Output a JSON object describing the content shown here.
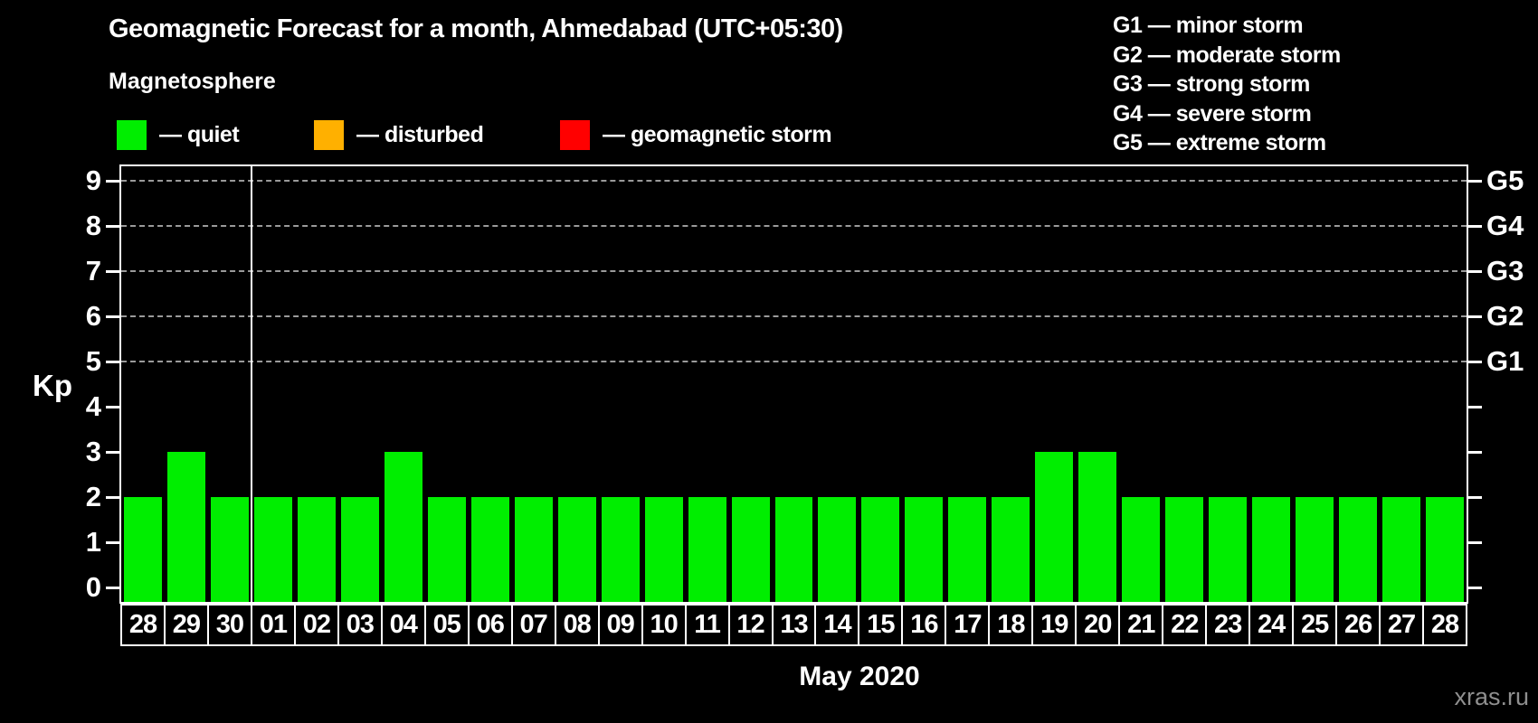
{
  "header": {
    "title": "Geomagnetic Forecast for a month, Ahmedabad (UTC+05:30)",
    "subtitle": "Magnetosphere"
  },
  "legend": {
    "items": [
      {
        "name": "quiet",
        "label": "— quiet",
        "color": "#00ee00"
      },
      {
        "name": "disturbed",
        "label": "— disturbed",
        "color": "#ffb000"
      },
      {
        "name": "geomagnetic-storm",
        "label": "— geomagnetic storm",
        "color": "#ff0000"
      }
    ]
  },
  "storm_scale": {
    "items": [
      "G1 — minor storm",
      "G2 — moderate storm",
      "G3 — strong storm",
      "G4 — severe storm",
      "G5 — extreme storm"
    ]
  },
  "axes": {
    "y_label": "Kp",
    "y_ticks": [
      0,
      1,
      2,
      3,
      4,
      5,
      6,
      7,
      8,
      9
    ],
    "g_ticks": [
      {
        "kp": 5,
        "label": "G1"
      },
      {
        "kp": 6,
        "label": "G2"
      },
      {
        "kp": 7,
        "label": "G3"
      },
      {
        "kp": 8,
        "label": "G4"
      },
      {
        "kp": 9,
        "label": "G5"
      }
    ],
    "x_title": "May 2020"
  },
  "footer": {
    "watermark": "xras.ru"
  },
  "chart_data": {
    "type": "bar",
    "title": "Geomagnetic Forecast for a month, Ahmedabad (UTC+05:30)",
    "xlabel": "May 2020",
    "ylabel": "Kp",
    "ylim": [
      -0.36,
      9.36
    ],
    "gridlines_at": [
      5,
      6,
      7,
      8,
      9
    ],
    "grid_style": "dashed",
    "bar_color": "#00ee00",
    "separator_after_index": 2,
    "categories": [
      "28",
      "29",
      "30",
      "01",
      "02",
      "03",
      "04",
      "05",
      "06",
      "07",
      "08",
      "09",
      "10",
      "11",
      "12",
      "13",
      "14",
      "15",
      "16",
      "17",
      "18",
      "19",
      "20",
      "21",
      "22",
      "23",
      "24",
      "25",
      "26",
      "27",
      "28"
    ],
    "values": [
      2,
      3,
      2,
      2,
      2,
      2,
      3,
      2,
      2,
      2,
      2,
      2,
      2,
      2,
      2,
      2,
      2,
      2,
      2,
      2,
      2,
      3,
      3,
      2,
      2,
      2,
      2,
      2,
      2,
      2,
      2
    ]
  }
}
